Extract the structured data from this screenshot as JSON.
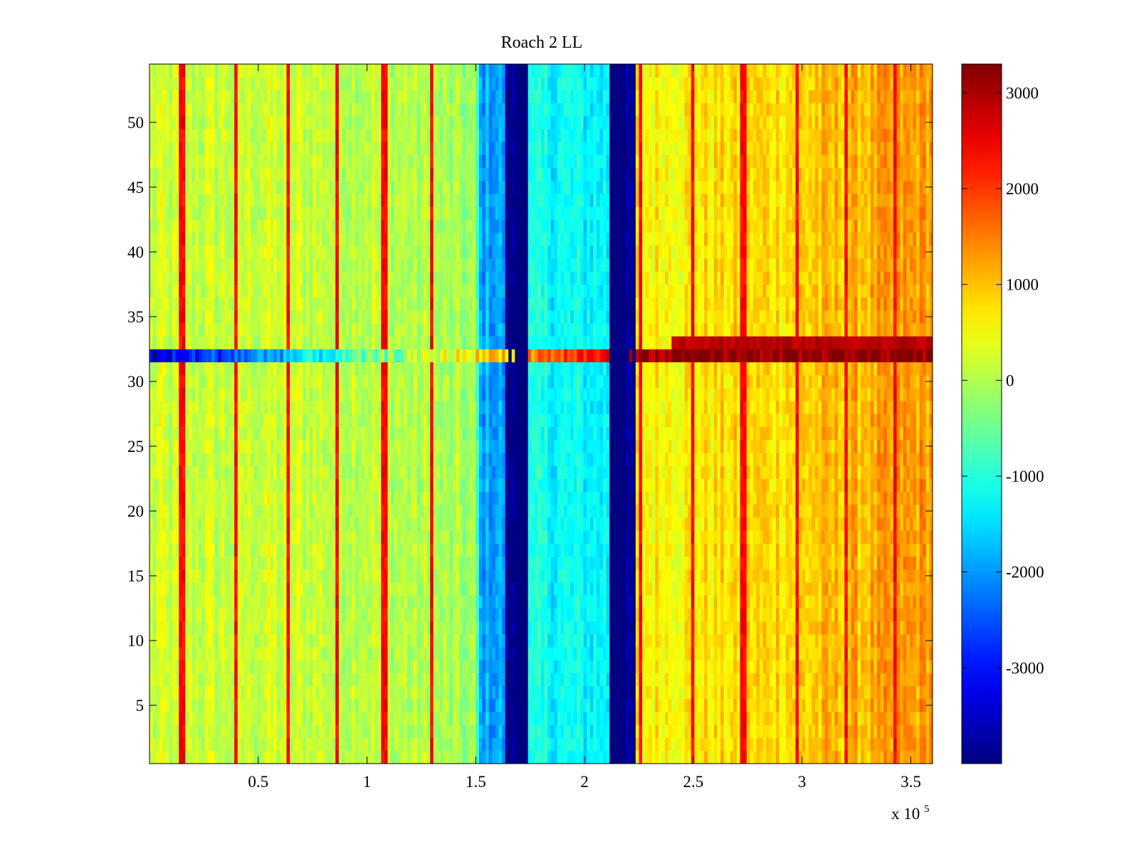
{
  "chart_data": {
    "type": "heatmap",
    "title": "Roach 2 LL",
    "xlabel": "",
    "ylabel": "",
    "x_exponent_label": {
      "base": "x 10",
      "exponent": "5"
    },
    "xlim": [
      0,
      3.6
    ],
    "ylim": [
      0.5,
      54.5
    ],
    "x_ticks": [
      0.5,
      1,
      1.5,
      2,
      2.5,
      3,
      3.5
    ],
    "x_tick_labels": [
      "0.5",
      "1",
      "1.5",
      "2",
      "2.5",
      "3",
      "3.5"
    ],
    "y_ticks": [
      5,
      10,
      15,
      20,
      25,
      30,
      35,
      40,
      45,
      50
    ],
    "y_tick_labels": [
      "5",
      "10",
      "15",
      "20",
      "25",
      "30",
      "35",
      "40",
      "45",
      "50"
    ],
    "colorbar": {
      "colormap": "jet",
      "range": [
        -4000,
        3300
      ],
      "ticks": [
        -3000,
        -2000,
        -1000,
        0,
        1000,
        2000,
        3000
      ],
      "tick_labels": [
        "-3000",
        "-2000",
        "-1000",
        "0",
        "1000",
        "2000",
        "3000"
      ]
    },
    "rows": 54,
    "column_profile": [
      {
        "x": 0.0,
        "value": 150
      },
      {
        "x": 0.5,
        "value": 200
      },
      {
        "x": 1.0,
        "value": 150
      },
      {
        "x": 1.5,
        "value": -200
      },
      {
        "x": 1.52,
        "value": -1900
      },
      {
        "x": 1.63,
        "value": -4000
      },
      {
        "x": 1.74,
        "value": -1200
      },
      {
        "x": 2.1,
        "value": -1300
      },
      {
        "x": 2.11,
        "value": -4000
      },
      {
        "x": 2.23,
        "value": 600
      },
      {
        "x": 2.5,
        "value": 700
      },
      {
        "x": 3.0,
        "value": 900
      },
      {
        "x": 3.6,
        "value": 1300
      }
    ],
    "vertical_streaks_x": [
      0.15,
      0.4,
      0.64,
      0.86,
      1.08,
      1.3,
      2.26,
      2.5,
      2.73,
      2.98,
      3.2,
      3.43
    ],
    "anomalous_rows": [
      {
        "row": 32,
        "left_value": -3500,
        "right_value": 3300
      }
    ]
  }
}
